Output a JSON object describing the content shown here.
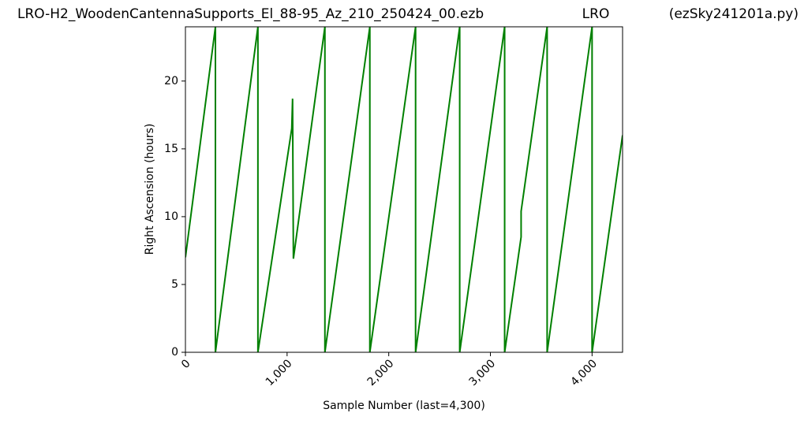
{
  "chart_data": {
    "type": "line",
    "title_parts": [
      "LRO-H2_WoodenCantennaSupports_El_88-95_Az_210_250424_00.ezb",
      "LRO",
      "(ezSky241201a.py)"
    ],
    "xlabel": "Sample Number (last=4,300)",
    "ylabel": "Right Ascension (hours)",
    "x": [
      0,
      295,
      295,
      713,
      713,
      1046,
      1054,
      1062,
      1372,
      1372,
      1814,
      1814,
      2264,
      2264,
      2698,
      2698,
      3140,
      3140,
      3302,
      3302,
      3558,
      3558,
      4000,
      4000,
      4300
    ],
    "series": [
      {
        "name": "Right Ascension",
        "color": "#008000",
        "values": [
          7,
          24,
          0,
          24,
          0,
          16.5,
          18.7,
          6.9,
          24,
          0,
          24,
          0,
          24,
          0,
          24,
          0,
          24,
          0,
          8.5,
          10.4,
          24,
          0,
          24,
          0,
          16
        ]
      }
    ],
    "xlim": [
      0,
      4300
    ],
    "ylim": [
      0,
      24
    ],
    "xticks": [
      0,
      {
        "value": 1000,
        "label": "1,000"
      },
      {
        "value": 2000,
        "label": "2,000"
      },
      {
        "value": 3000,
        "label": "3,000"
      },
      {
        "value": 4000,
        "label": "4,000"
      }
    ],
    "yticks": [
      0,
      5,
      10,
      15,
      20
    ]
  }
}
